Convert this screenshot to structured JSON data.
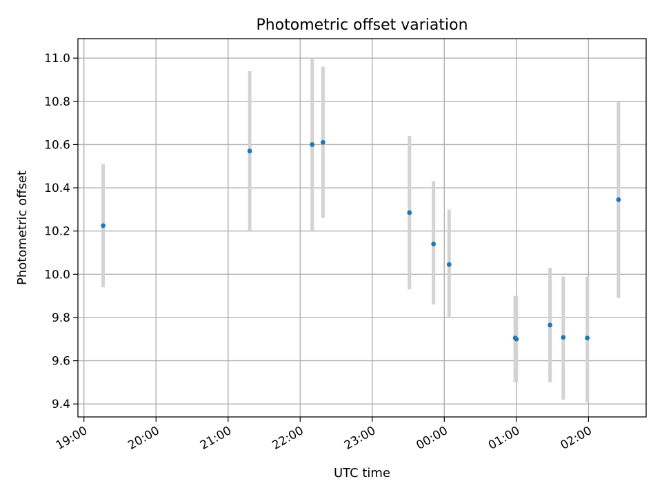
{
  "chart_data": {
    "type": "scatter",
    "title": "Photometric offset variation",
    "xlabel": "UTC time",
    "ylabel": "Photometric offset",
    "x_ticks": [
      "19:00",
      "20:00",
      "21:00",
      "22:00",
      "23:00",
      "00:00",
      "01:00",
      "02:00"
    ],
    "y_ticks": [
      "9.4",
      "9.6",
      "9.8",
      "10.0",
      "10.2",
      "10.4",
      "10.6",
      "10.8",
      "11.0"
    ],
    "xlim": [
      "18:55",
      "02:48"
    ],
    "ylim": [
      9.34,
      11.09
    ],
    "grid": true,
    "series": [
      {
        "marker_color": "#1f77b4",
        "errorbar_color": "#d3d3d3",
        "points": [
          {
            "x": "19:16",
            "y": 10.225,
            "y_low": 9.94,
            "y_high": 10.51
          },
          {
            "x": "21:18",
            "y": 10.57,
            "y_low": 10.2,
            "y_high": 10.94
          },
          {
            "x": "22:10",
            "y": 10.6,
            "y_low": 10.2,
            "y_high": 11.0
          },
          {
            "x": "22:19",
            "y": 10.61,
            "y_low": 10.26,
            "y_high": 10.96
          },
          {
            "x": "23:31",
            "y": 10.285,
            "y_low": 9.93,
            "y_high": 10.64
          },
          {
            "x": "23:51",
            "y": 10.14,
            "y_low": 9.86,
            "y_high": 10.43
          },
          {
            "x": "00:04",
            "y": 10.045,
            "y_low": 9.8,
            "y_high": 10.3
          },
          {
            "x": "00:59",
            "y": 9.705,
            "y_low": 9.5,
            "y_high": 9.9
          },
          {
            "x": "01:00",
            "y": 9.7,
            "y_low": 9.5,
            "y_high": 9.9
          },
          {
            "x": "01:28",
            "y": 9.765,
            "y_low": 9.5,
            "y_high": 10.03
          },
          {
            "x": "01:39",
            "y": 9.708,
            "y_low": 9.42,
            "y_high": 9.99
          },
          {
            "x": "01:59",
            "y": 9.705,
            "y_low": 9.41,
            "y_high": 9.99
          },
          {
            "x": "02:25",
            "y": 10.345,
            "y_low": 9.89,
            "y_high": 10.8
          }
        ]
      }
    ]
  }
}
